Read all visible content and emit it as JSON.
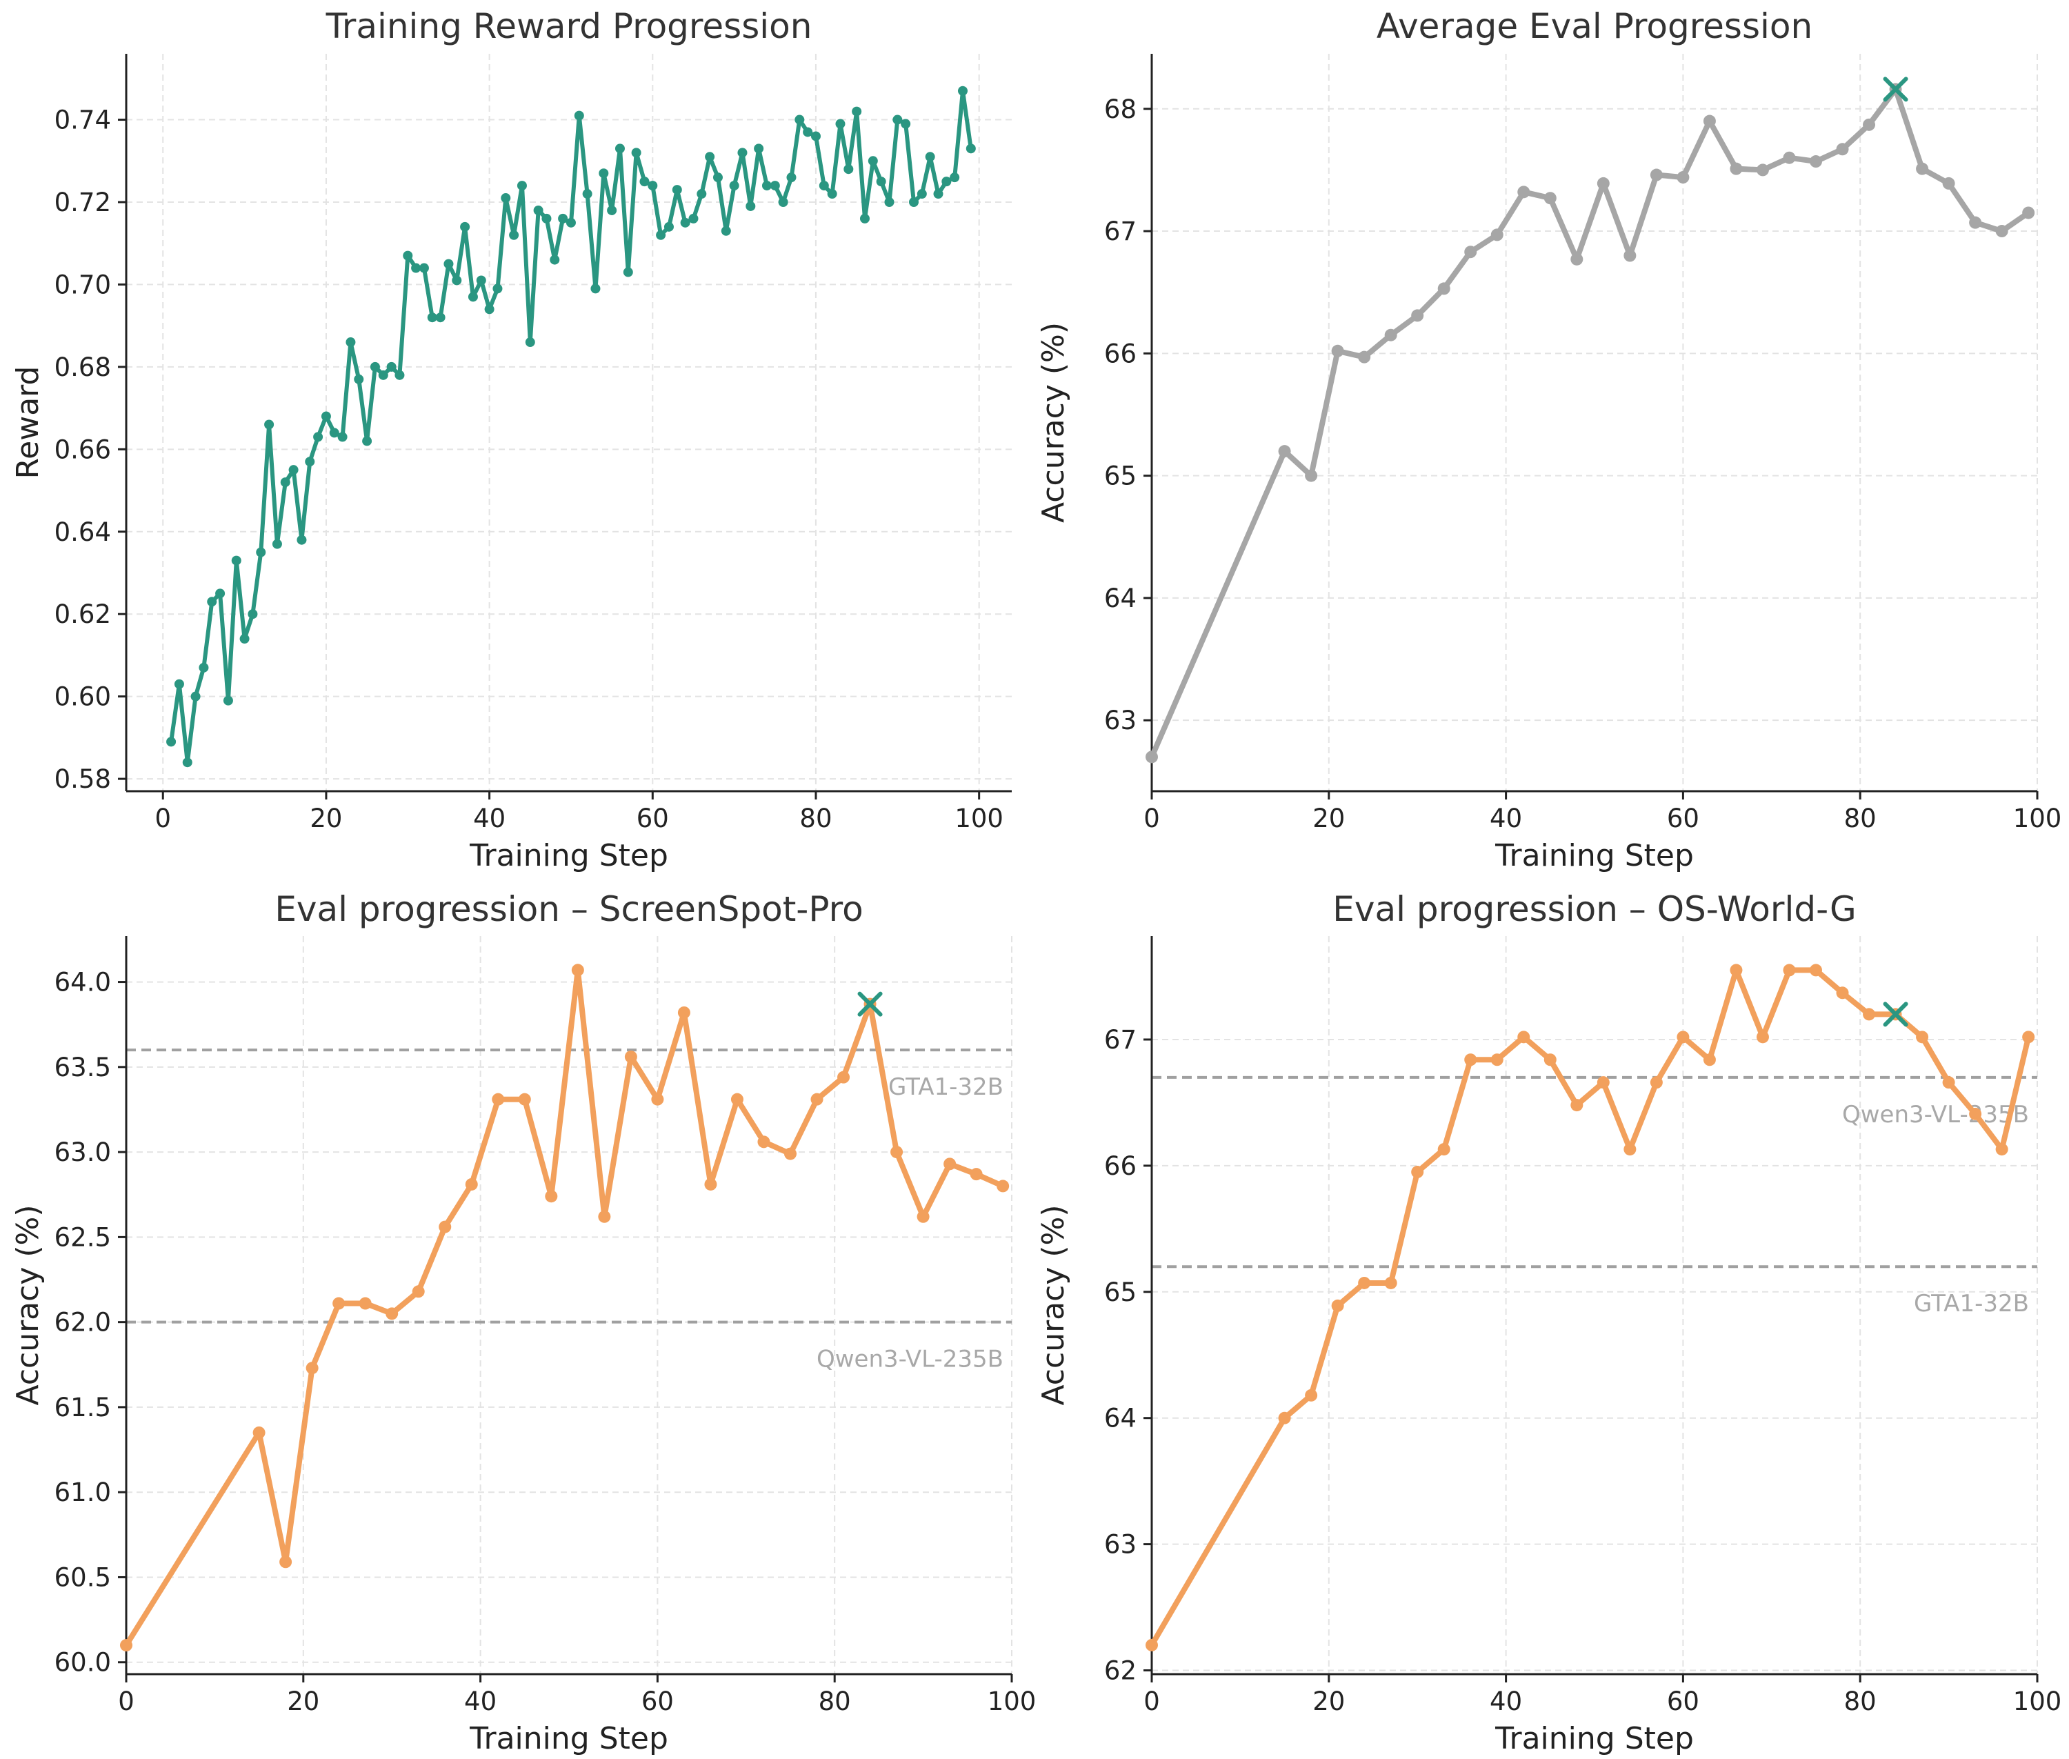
{
  "chart_data": [
    {
      "type": "line",
      "title": "Training Reward Progression",
      "xlabel": "Training Step",
      "ylabel": "Reward",
      "xlim": [
        -4.5,
        104
      ],
      "ylim": [
        0.577,
        0.756
      ],
      "xticks": [
        0,
        20,
        40,
        60,
        80,
        100
      ],
      "xtick_labels": [
        "0",
        "20",
        "40",
        "60",
        "80",
        "100"
      ],
      "yticks": [
        0.58,
        0.6,
        0.62,
        0.64,
        0.66,
        0.68,
        0.7,
        0.72,
        0.74
      ],
      "ytick_labels": [
        "0.58",
        "0.60",
        "0.62",
        "0.64",
        "0.66",
        "0.68",
        "0.70",
        "0.72",
        "0.74"
      ],
      "grid": true,
      "colors": {
        "line": "#2a9681"
      },
      "series": [
        {
          "x": [
            1,
            2,
            3,
            4,
            5,
            6,
            7,
            8,
            9,
            10,
            11,
            12,
            13,
            14,
            15,
            16,
            17,
            18,
            19,
            20,
            21,
            22,
            23,
            24,
            25,
            26,
            27,
            28,
            29,
            30,
            31,
            32,
            33,
            34,
            35,
            36,
            37,
            38,
            39,
            40,
            41,
            42,
            43,
            44,
            45,
            46,
            47,
            48,
            49,
            50,
            51,
            52,
            53,
            54,
            55,
            56,
            57,
            58,
            59,
            60,
            61,
            62,
            63,
            64,
            65,
            66,
            67,
            68,
            69,
            70,
            71,
            72,
            73,
            74,
            75,
            76,
            77,
            78,
            79,
            80,
            81,
            82,
            83,
            84,
            85,
            86,
            87,
            88,
            89,
            90,
            91,
            92,
            93,
            94,
            95,
            96,
            97,
            98,
            99
          ],
          "values": [
            0.589,
            0.603,
            0.584,
            0.6,
            0.607,
            0.623,
            0.625,
            0.599,
            0.633,
            0.614,
            0.62,
            0.635,
            0.666,
            0.637,
            0.652,
            0.655,
            0.638,
            0.657,
            0.663,
            0.668,
            0.664,
            0.663,
            0.686,
            0.677,
            0.662,
            0.68,
            0.678,
            0.68,
            0.678,
            0.707,
            0.704,
            0.704,
            0.692,
            0.692,
            0.705,
            0.701,
            0.714,
            0.697,
            0.701,
            0.694,
            0.699,
            0.721,
            0.712,
            0.724,
            0.686,
            0.718,
            0.716,
            0.706,
            0.716,
            0.715,
            0.741,
            0.722,
            0.699,
            0.727,
            0.718,
            0.733,
            0.703,
            0.732,
            0.725,
            0.724,
            0.712,
            0.714,
            0.723,
            0.715,
            0.716,
            0.722,
            0.731,
            0.726,
            0.713,
            0.724,
            0.732,
            0.719,
            0.733,
            0.724,
            0.724,
            0.72,
            0.726,
            0.74,
            0.737,
            0.736,
            0.724,
            0.722,
            0.739,
            0.728,
            0.742,
            0.716,
            0.73,
            0.725,
            0.72,
            0.74,
            0.739,
            0.72,
            0.722,
            0.731,
            0.722,
            0.725,
            0.726,
            0.747,
            0.733
          ]
        }
      ]
    },
    {
      "type": "line",
      "title": "Average Eval Progression",
      "xlabel": "Training Step",
      "ylabel": "Accuracy (%)",
      "xlim": [
        0,
        100
      ],
      "ylim": [
        62.42,
        68.45
      ],
      "xticks": [
        0,
        20,
        40,
        60,
        80,
        100
      ],
      "xtick_labels": [
        "0",
        "20",
        "40",
        "60",
        "80",
        "100"
      ],
      "yticks": [
        63,
        64,
        65,
        66,
        67,
        68
      ],
      "ytick_labels": [
        "63",
        "64",
        "65",
        "66",
        "67",
        "68"
      ],
      "grid": true,
      "colors": {
        "line": "#a6a6a6",
        "best_marker": "#2a9681"
      },
      "best": {
        "x": 84,
        "y": 68.16
      },
      "series": [
        {
          "x": [
            0,
            15,
            18,
            21,
            24,
            27,
            30,
            33,
            36,
            39,
            42,
            45,
            48,
            51,
            54,
            57,
            60,
            63,
            66,
            69,
            72,
            75,
            78,
            81,
            84,
            87,
            90,
            93,
            96,
            99
          ],
          "values": [
            62.7,
            65.2,
            65.0,
            66.02,
            65.97,
            66.15,
            66.31,
            66.53,
            66.83,
            66.97,
            67.32,
            67.27,
            66.77,
            67.39,
            66.8,
            67.46,
            67.44,
            67.9,
            67.51,
            67.5,
            67.6,
            67.57,
            67.67,
            67.87,
            68.16,
            67.51,
            67.39,
            67.07,
            67.0,
            67.15
          ]
        }
      ]
    },
    {
      "type": "line",
      "title": "Eval progression – ScreenSpot-Pro",
      "xlabel": "Training Step",
      "ylabel": "Accuracy (%)",
      "xlim": [
        0,
        100
      ],
      "ylim": [
        59.93,
        64.27
      ],
      "xticks": [
        0,
        20,
        40,
        60,
        80,
        100
      ],
      "xtick_labels": [
        "0",
        "20",
        "40",
        "60",
        "80",
        "100"
      ],
      "yticks": [
        60.0,
        60.5,
        61.0,
        61.5,
        62.0,
        62.5,
        63.0,
        63.5,
        64.0
      ],
      "ytick_labels": [
        "60.0",
        "60.5",
        "61.0",
        "61.5",
        "62.0",
        "62.5",
        "63.0",
        "63.5",
        "64.0"
      ],
      "grid": true,
      "colors": {
        "line": "#f2a05c",
        "best_marker": "#2a9681",
        "reference": "#a0a0a0"
      },
      "best": {
        "x": 84,
        "y": 63.87
      },
      "reference_lines": [
        {
          "label": "GTA1-32B",
          "y": 63.6
        },
        {
          "label": "Qwen3-VL-235B",
          "y": 62.0
        }
      ],
      "series": [
        {
          "x": [
            0,
            15,
            18,
            21,
            24,
            27,
            30,
            33,
            36,
            39,
            42,
            45,
            48,
            51,
            54,
            57,
            60,
            63,
            66,
            69,
            72,
            75,
            78,
            81,
            84,
            87,
            90,
            93,
            96,
            99
          ],
          "values": [
            60.1,
            61.35,
            60.59,
            61.73,
            62.11,
            62.11,
            62.05,
            62.18,
            62.56,
            62.81,
            63.31,
            63.31,
            62.74,
            64.07,
            62.62,
            63.56,
            63.31,
            63.82,
            62.81,
            63.31,
            63.06,
            62.99,
            63.31,
            63.44,
            63.87,
            63.0,
            62.62,
            62.93,
            62.87,
            62.8
          ]
        }
      ]
    },
    {
      "type": "line",
      "title": "Eval progression – OS-World-G",
      "xlabel": "Training Step",
      "ylabel": "Accuracy (%)",
      "xlim": [
        0,
        100
      ],
      "ylim": [
        61.97,
        67.82
      ],
      "xticks": [
        0,
        20,
        40,
        60,
        80,
        100
      ],
      "xtick_labels": [
        "0",
        "20",
        "40",
        "60",
        "80",
        "100"
      ],
      "yticks": [
        62,
        63,
        64,
        65,
        66,
        67
      ],
      "ytick_labels": [
        "62",
        "63",
        "64",
        "65",
        "66",
        "67"
      ],
      "grid": true,
      "colors": {
        "line": "#f2a05c",
        "best_marker": "#2a9681",
        "reference": "#a0a0a0"
      },
      "best": {
        "x": 84,
        "y": 67.2
      },
      "reference_lines": [
        {
          "label": "Qwen3-VL-235B",
          "y": 66.7
        },
        {
          "label": "GTA1-32B",
          "y": 65.2
        }
      ],
      "series": [
        {
          "x": [
            0,
            15,
            18,
            21,
            24,
            27,
            30,
            33,
            36,
            39,
            42,
            45,
            48,
            51,
            54,
            57,
            60,
            63,
            66,
            69,
            72,
            75,
            78,
            81,
            84,
            87,
            90,
            93,
            96,
            99
          ],
          "values": [
            62.2,
            64.0,
            64.18,
            64.89,
            65.07,
            65.07,
            65.95,
            66.13,
            66.84,
            66.84,
            67.02,
            66.84,
            66.48,
            66.66,
            66.13,
            66.66,
            67.02,
            66.84,
            67.55,
            67.02,
            67.55,
            67.55,
            67.37,
            67.2,
            67.2,
            67.02,
            66.66,
            66.41,
            66.13,
            67.02
          ]
        }
      ]
    }
  ]
}
